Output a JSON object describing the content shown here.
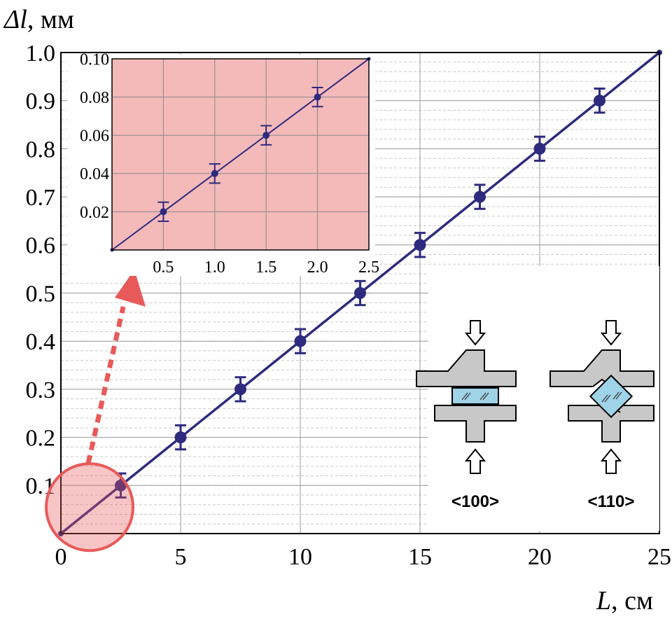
{
  "chart_data": [
    {
      "type": "scatter",
      "title": "",
      "xlabel_symbol": "L",
      "xlabel_unit": ", см",
      "ylabel_symbol": "Δl",
      "ylabel_unit": ", мм",
      "xlim": [
        0,
        25
      ],
      "ylim": [
        0,
        1.0
      ],
      "xticks": [
        "0",
        "5",
        "10",
        "15",
        "20",
        "25"
      ],
      "yticks": [
        "0.1",
        "0.2",
        "0.3",
        "0.4",
        "0.5",
        "0.6",
        "0.7",
        "0.8",
        "0.9",
        "1.0"
      ],
      "grid": true,
      "series": [
        {
          "x": [
            2.5,
            5,
            7.5,
            10,
            12.5,
            15,
            17.5,
            20,
            22.5
          ],
          "y": [
            0.1,
            0.2,
            0.3,
            0.4,
            0.5,
            0.6,
            0.7,
            0.8,
            0.9
          ],
          "yerr": [
            0.025,
            0.025,
            0.025,
            0.025,
            0.025,
            0.025,
            0.025,
            0.025,
            0.025
          ],
          "color": "#2e2a7e"
        }
      ],
      "fit_line": {
        "x": [
          0,
          25
        ],
        "y": [
          0,
          1.0
        ]
      }
    },
    {
      "type": "scatter",
      "title": "inset",
      "xlim": [
        0,
        2.5
      ],
      "ylim": [
        0,
        0.1
      ],
      "xticks": [
        "0.5",
        "1.0",
        "1.5",
        "2.0",
        "2.5"
      ],
      "yticks": [
        "0.02",
        "0.04",
        "0.06",
        "0.08",
        "0.10"
      ],
      "grid": true,
      "background": "#f4b9b9",
      "series": [
        {
          "x": [
            0.5,
            1.0,
            1.5,
            2.0
          ],
          "y": [
            0.02,
            0.04,
            0.06,
            0.08
          ],
          "yerr": [
            0.005,
            0.005,
            0.005,
            0.005
          ],
          "color": "#2e2a7e"
        }
      ],
      "fit_line": {
        "x": [
          0,
          2.5
        ],
        "y": [
          0,
          0.1
        ]
      }
    }
  ],
  "diagram": {
    "orientations": [
      "<100>",
      "<110>"
    ],
    "crystal_color": "#9fd3e8",
    "anvil_color": "#c8c8c8"
  },
  "highlight_color": "#e85a5a"
}
